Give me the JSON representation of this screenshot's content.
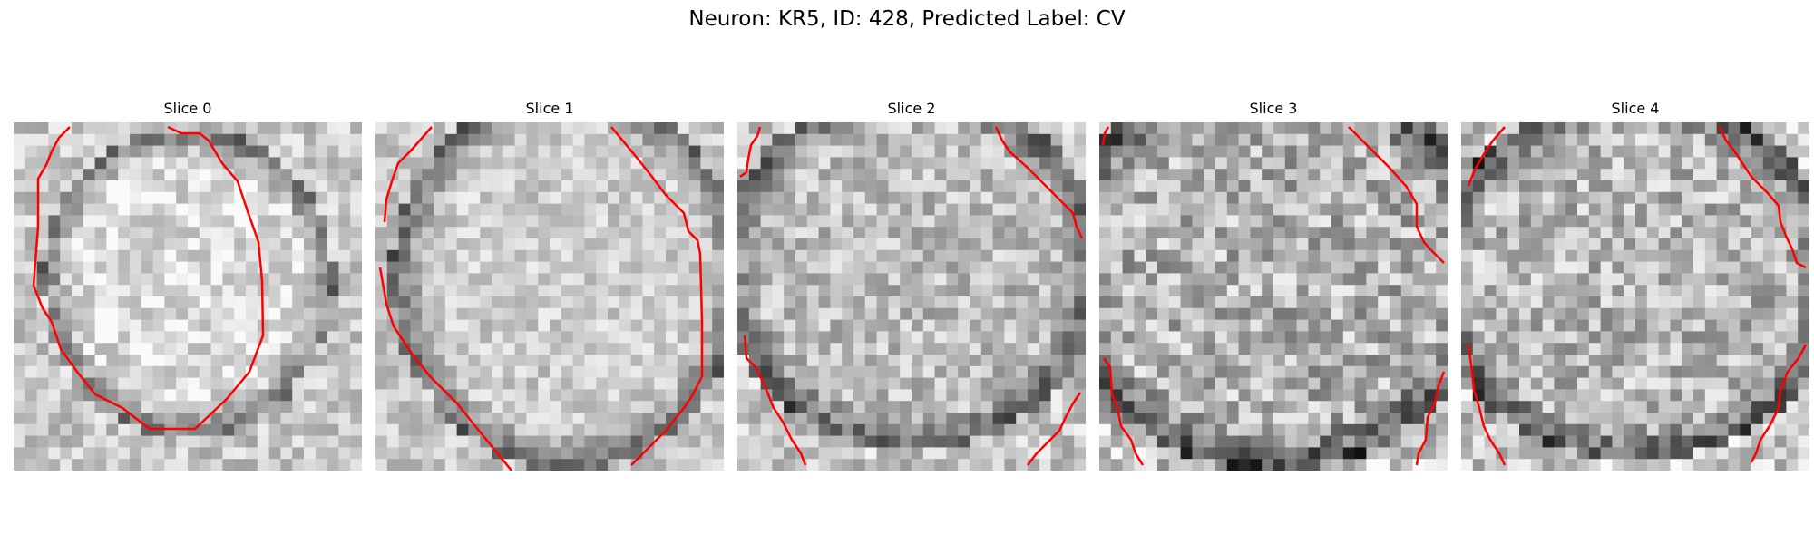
{
  "figure": {
    "title": "Neuron: KR5, ID: 428, Predicted Label: CV",
    "contour_color": "#ff0000",
    "slices": [
      {
        "title": "Slice 0"
      },
      {
        "title": "Slice 1"
      },
      {
        "title": "Slice 2"
      },
      {
        "title": "Slice 3"
      },
      {
        "title": "Slice 4"
      }
    ]
  }
}
